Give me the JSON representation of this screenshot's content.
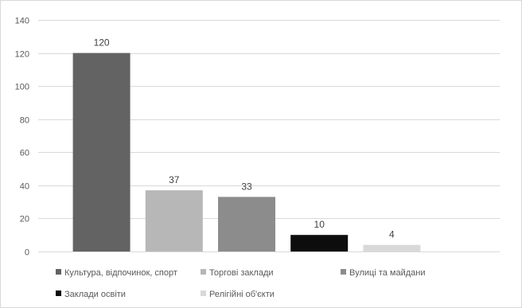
{
  "chart_data": {
    "type": "bar",
    "title": "",
    "xlabel": "",
    "ylabel": "",
    "ylim": [
      0,
      140
    ],
    "yticks": [
      0,
      20,
      40,
      60,
      80,
      100,
      120,
      140
    ],
    "grid": true,
    "legend_position": "bottom",
    "categories": [
      "Культура, відпочинок, спорт",
      "Торгові заклади",
      "Вулиці та майдани",
      "Заклади освіти",
      "Релігійні об'єкти"
    ],
    "values": [
      120,
      37,
      33,
      10,
      4
    ],
    "colors": [
      "#636363",
      "#b7b7b7",
      "#8c8c8c",
      "#0d0d0d",
      "#d9d9d9"
    ]
  }
}
